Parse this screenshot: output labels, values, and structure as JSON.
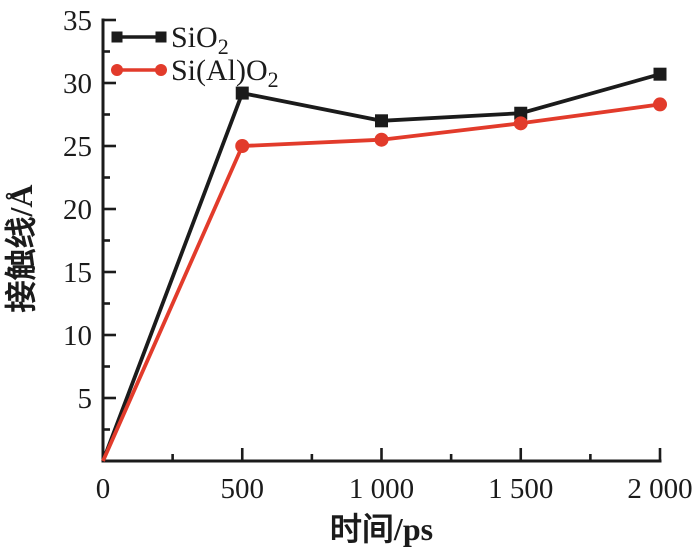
{
  "figure": {
    "background": "#ffffff"
  },
  "chart_data": {
    "type": "line",
    "title": "",
    "xlabel": "时间/ps",
    "ylabel": "接触线/Å",
    "x": [
      0,
      500,
      1000,
      1500,
      2000
    ],
    "series": [
      {
        "name": "sio2",
        "label_base": "SiO",
        "label_sub": "2",
        "color": "#1b1b1b",
        "marker": "square",
        "values": [
          0,
          29.2,
          27.0,
          27.6,
          30.7
        ]
      },
      {
        "name": "sialo2",
        "label_base": "Si(Al)O",
        "label_sub": "2",
        "color": "#e23b2b",
        "marker": "circle",
        "values": [
          0,
          25.0,
          25.5,
          26.8,
          28.3
        ]
      }
    ],
    "xlim": [
      0,
      2000
    ],
    "ylim": [
      0,
      35
    ],
    "x_major_ticks": [
      0,
      500,
      1000,
      1500,
      2000
    ],
    "x_tick_labels": [
      "0",
      "500",
      "1 000",
      "1 500",
      "2 000"
    ],
    "x_minor_interval": 250,
    "y_major_ticks": [
      5,
      10,
      15,
      20,
      25,
      30,
      35
    ],
    "y_minor_interval": 2.5,
    "axis_color": "#1b1b1b",
    "text_color": "#1b1b1b",
    "grid": false,
    "legend_position": "top-left",
    "markers_at_origin": false,
    "ticks_direction": "in",
    "spines": [
      "left",
      "bottom"
    ]
  }
}
